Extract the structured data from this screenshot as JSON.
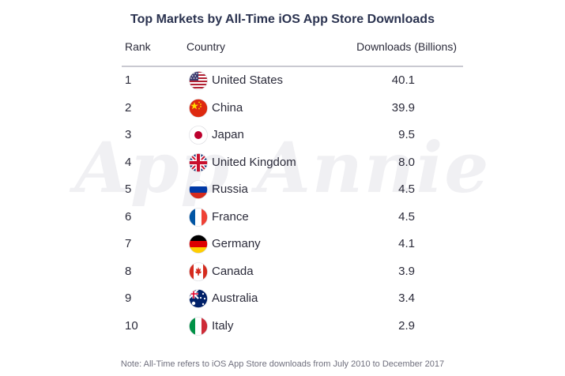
{
  "chart_data": {
    "type": "table",
    "title": "Top Markets by All-Time iOS App Store Downloads",
    "columns": [
      "Rank",
      "Country",
      "Downloads (Billions)"
    ],
    "rows": [
      {
        "rank": "1",
        "country": "United States",
        "downloads": "40.1",
        "flag_icon": "us-flag-icon"
      },
      {
        "rank": "2",
        "country": "China",
        "downloads": "39.9",
        "flag_icon": "china-flag-icon"
      },
      {
        "rank": "3",
        "country": "Japan",
        "downloads": "9.5",
        "flag_icon": "japan-flag-icon"
      },
      {
        "rank": "4",
        "country": "United Kingdom",
        "downloads": "8.0",
        "flag_icon": "uk-flag-icon"
      },
      {
        "rank": "5",
        "country": "Russia",
        "downloads": "4.5",
        "flag_icon": "russia-flag-icon"
      },
      {
        "rank": "6",
        "country": "France",
        "downloads": "4.5",
        "flag_icon": "france-flag-icon"
      },
      {
        "rank": "7",
        "country": "Germany",
        "downloads": "4.1",
        "flag_icon": "germany-flag-icon"
      },
      {
        "rank": "8",
        "country": "Canada",
        "downloads": "3.9",
        "flag_icon": "canada-flag-icon"
      },
      {
        "rank": "9",
        "country": "Australia",
        "downloads": "3.4",
        "flag_icon": "australia-flag-icon"
      },
      {
        "rank": "10",
        "country": "Italy",
        "downloads": "2.9",
        "flag_icon": "italy-flag-icon"
      }
    ],
    "note": "Note: All-Time refers to iOS App Store downloads from July 2010 to December 2017",
    "watermark": "App Annie"
  },
  "colors": {
    "title": "#2b3350",
    "text": "#2b2b3a",
    "rule": "#c9c9d1",
    "note": "#6f6f7d",
    "watermark": "#f0f0f3"
  }
}
